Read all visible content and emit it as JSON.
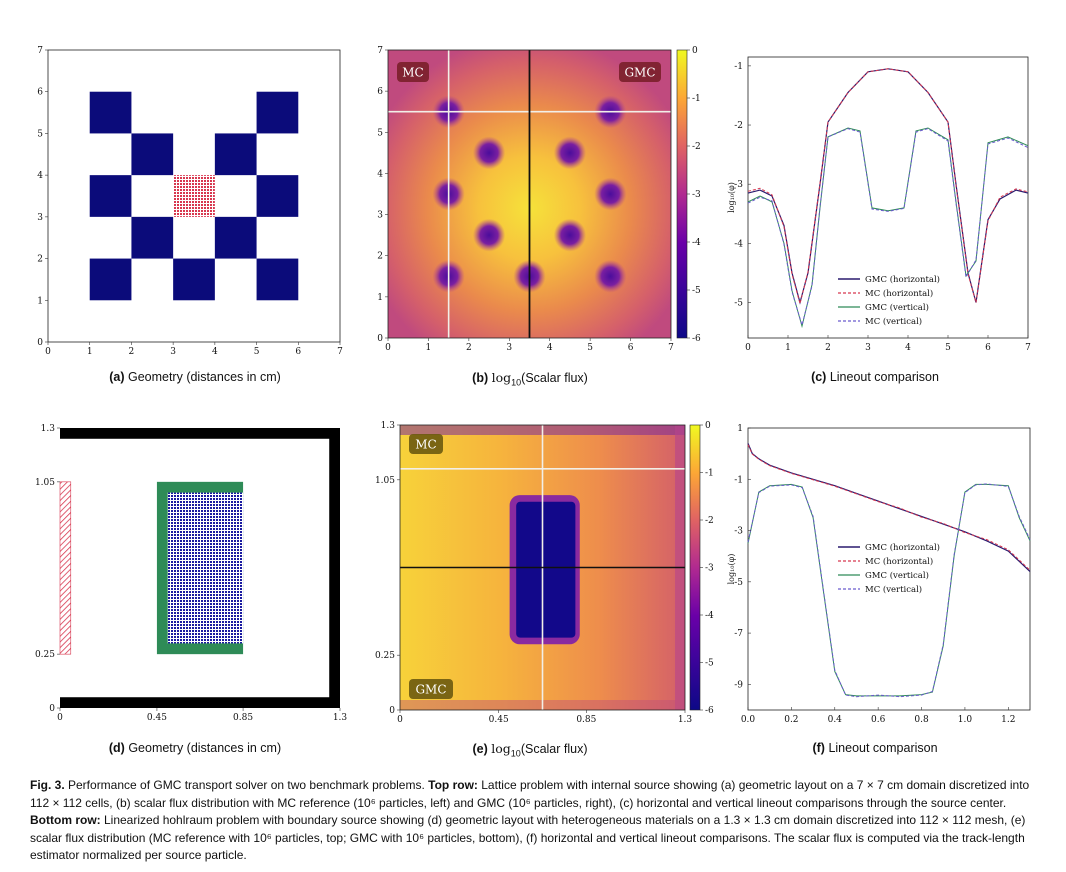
{
  "panels": {
    "a": {
      "label": "(a)",
      "text": "Geometry (distances in cm)"
    },
    "b": {
      "label": "(b)",
      "text_pre": "log",
      "text_sub": "10",
      "text_post": "(Scalar flux)"
    },
    "c": {
      "label": "(c)",
      "text": "Lineout comparison"
    },
    "d": {
      "label": "(d)",
      "text": "Geometry (distances in cm)"
    },
    "e": {
      "label": "(e)",
      "text_pre": "log",
      "text_sub": "10",
      "text_post": "(Scalar flux)"
    },
    "f": {
      "label": "(f)",
      "text": "Lineout comparison"
    }
  },
  "flux_labels": {
    "b_left": "MC",
    "b_right": "GMC",
    "e_top": "MC",
    "e_bottom": "GMC"
  },
  "colors": {
    "absorber": "#0b0b7a",
    "source": "#d8374f",
    "wall": "#000000",
    "box": "#2e8b57",
    "gmc_h": "#2a1a6e",
    "mc_h": "#d8374f",
    "gmc_v": "#2e8b57",
    "mc_v": "#6a5acd"
  },
  "caption": {
    "fig": "Fig. 3.",
    "p1": " Performance of GMC transport solver on two benchmark problems. ",
    "top_label": "Top row:",
    "p2": " Lattice problem with internal source showing (a) geometric layout on a 7 × 7 cm domain discretized into 112 × 112 cells, (b) scalar flux distribution with MC reference (10⁶ particles, left) and GMC (10⁶ particles, right), (c) horizontal and vertical lineout comparisons through the source center. ",
    "bottom_label": "Bottom row:",
    "p3": " Linearized hohlraum problem with boundary source showing (d) geometric layout with heterogeneous materials on a 1.3 × 1.3 cm domain discretized into 112 × 112 mesh, (e) scalar flux distribution (MC reference with 10⁶ particles, top; GMC with 10⁶ particles, bottom), (f) horizontal and vertical lineout comparisons. The scalar flux is computed via the track-length estimator normalized per source particle."
  },
  "chart_data": [
    {
      "id": "a",
      "type": "heatmap",
      "xlim": [
        0,
        7
      ],
      "ylim": [
        0,
        7
      ],
      "xticks": [
        "0",
        "1",
        "2",
        "3",
        "4",
        "5",
        "6",
        "7"
      ],
      "yticks": [
        "0",
        "1",
        "2",
        "3",
        "4",
        "5",
        "6",
        "7"
      ],
      "absorber_squares": [
        [
          1,
          5
        ],
        [
          5,
          5
        ],
        [
          2,
          4
        ],
        [
          4,
          4
        ],
        [
          1,
          3
        ],
        [
          5,
          3
        ],
        [
          2,
          2
        ],
        [
          4,
          2
        ],
        [
          1,
          1
        ],
        [
          3,
          1
        ],
        [
          5,
          1
        ]
      ],
      "source_square": [
        3,
        3
      ]
    },
    {
      "id": "b",
      "type": "heatmap",
      "xlim": [
        0,
        7
      ],
      "ylim": [
        0,
        7
      ],
      "xticks": [
        "0",
        "1",
        "2",
        "3",
        "4",
        "5",
        "6",
        "7"
      ],
      "yticks": [
        "0",
        "1",
        "2",
        "3",
        "4",
        "5",
        "6",
        "7"
      ],
      "colorbar": {
        "range": [
          -6,
          0
        ],
        "ticks": [
          "0",
          "-1",
          "-2",
          "-3",
          "-4",
          "-5",
          "-6"
        ]
      },
      "lineout_vertical_x": 3.5,
      "lineout_horizontal_y": 5.5,
      "lineout_vertical2_x": 1.5
    },
    {
      "id": "c",
      "type": "line",
      "xlim": [
        0,
        7
      ],
      "ylim": [
        -5.6,
        -0.85
      ],
      "xticks": [
        "0",
        "1",
        "2",
        "3",
        "4",
        "5",
        "6",
        "7"
      ],
      "yticks": [
        "-1",
        "-2",
        "-3",
        "-4",
        "-5"
      ],
      "ylabel": "log₁₀(φ)",
      "series": [
        {
          "name": "GMC (horizontal)",
          "x": [
            0,
            0.3,
            0.6,
            0.9,
            1.1,
            1.3,
            1.5,
            1.8,
            2.0,
            2.5,
            3.0,
            3.5,
            4.0,
            4.5,
            5.0,
            5.2,
            5.5,
            5.7,
            6.0,
            6.3,
            6.7,
            7.0
          ],
          "y": [
            -3.15,
            -3.1,
            -3.2,
            -3.7,
            -4.5,
            -5.0,
            -4.5,
            -3.0,
            -1.95,
            -1.45,
            -1.1,
            -1.05,
            -1.1,
            -1.45,
            -1.95,
            -3.0,
            -4.5,
            -5.0,
            -3.6,
            -3.25,
            -3.1,
            -3.15
          ]
        },
        {
          "name": "MC (horizontal)",
          "x": [
            0,
            0.3,
            0.6,
            0.9,
            1.1,
            1.3,
            1.5,
            1.8,
            2.0,
            2.5,
            3.0,
            3.5,
            4.0,
            4.5,
            5.0,
            5.2,
            5.5,
            5.7,
            6.0,
            6.3,
            6.7,
            7.0
          ],
          "y": [
            -3.12,
            -3.07,
            -3.18,
            -3.72,
            -4.52,
            -5.02,
            -4.48,
            -2.98,
            -1.95,
            -1.45,
            -1.1,
            -1.05,
            -1.1,
            -1.45,
            -1.95,
            -3.02,
            -4.52,
            -5.0,
            -3.62,
            -3.22,
            -3.08,
            -3.13
          ]
        },
        {
          "name": "GMC (vertical)",
          "x": [
            0,
            0.3,
            0.6,
            0.9,
            1.1,
            1.35,
            1.6,
            1.8,
            2.0,
            2.5,
            2.8,
            3.1,
            3.5,
            3.9,
            4.2,
            4.5,
            5.0,
            5.2,
            5.45,
            5.7,
            6.0,
            6.5,
            7.0
          ],
          "y": [
            -3.3,
            -3.2,
            -3.3,
            -4.0,
            -4.8,
            -5.4,
            -4.7,
            -3.4,
            -2.2,
            -2.05,
            -2.1,
            -3.4,
            -3.45,
            -3.4,
            -2.1,
            -2.05,
            -2.25,
            -3.3,
            -4.55,
            -4.3,
            -2.3,
            -2.2,
            -2.35
          ]
        },
        {
          "name": "MC (vertical)",
          "x": [
            0,
            0.3,
            0.6,
            0.9,
            1.1,
            1.35,
            1.6,
            1.8,
            2.0,
            2.5,
            2.8,
            3.1,
            3.5,
            3.9,
            4.2,
            4.5,
            5.0,
            5.2,
            5.45,
            5.7,
            6.0,
            6.5,
            7.0
          ],
          "y": [
            -3.32,
            -3.22,
            -3.28,
            -4.02,
            -4.82,
            -5.38,
            -4.72,
            -3.38,
            -2.2,
            -2.06,
            -2.12,
            -3.42,
            -3.46,
            -3.41,
            -2.12,
            -2.06,
            -2.27,
            -3.32,
            -4.57,
            -4.28,
            -2.32,
            -2.22,
            -2.38
          ]
        }
      ],
      "legend": "lower-center"
    },
    {
      "id": "d",
      "type": "heatmap",
      "xlim": [
        0,
        1.3
      ],
      "ylim": [
        0,
        1.3
      ],
      "xticks": [
        "0",
        "0.45",
        "0.85",
        "1.3"
      ],
      "yticks": [
        "0",
        "0.25",
        "1.05",
        "1.3"
      ]
    },
    {
      "id": "e",
      "type": "heatmap",
      "xlim": [
        0,
        1.3
      ],
      "ylim": [
        0,
        1.3
      ],
      "xticks": [
        "0",
        "0.45",
        "0.85",
        "1.3"
      ],
      "yticks": [
        "0",
        "0.25",
        "1.05",
        "1.3"
      ],
      "colorbar": {
        "range": [
          -6,
          0
        ],
        "ticks": [
          "0",
          "-1",
          "-2",
          "-3",
          "-4",
          "-5",
          "-6"
        ]
      },
      "lineout_vertical_x": 0.65,
      "lineout_horizontal_y": 0.65,
      "lineout_horizontal2_y": 1.1
    },
    {
      "id": "f",
      "type": "line",
      "xlim": [
        0,
        1.3
      ],
      "ylim": [
        -10.0,
        1.0
      ],
      "xticks": [
        "0.0",
        "0.2",
        "0.4",
        "0.6",
        "0.8",
        "1.0",
        "1.2"
      ],
      "yticks": [
        "1",
        "-1",
        "-3",
        "-5",
        "-7",
        "-9"
      ],
      "ylabel": "log₁₀(φ)",
      "series": [
        {
          "name": "GMC (horizontal)",
          "x": [
            0,
            0.02,
            0.05,
            0.1,
            0.2,
            0.3,
            0.4,
            0.5,
            0.6,
            0.7,
            0.8,
            0.9,
            1.0,
            1.1,
            1.2,
            1.25,
            1.3
          ],
          "y": [
            0.4,
            0.0,
            -0.2,
            -0.45,
            -0.75,
            -1.0,
            -1.25,
            -1.55,
            -1.85,
            -2.15,
            -2.45,
            -2.75,
            -3.05,
            -3.4,
            -3.8,
            -4.2,
            -4.6
          ]
        },
        {
          "name": "MC (horizontal)",
          "x": [
            0,
            0.02,
            0.05,
            0.1,
            0.2,
            0.3,
            0.4,
            0.5,
            0.6,
            0.7,
            0.8,
            0.9,
            1.0,
            1.1,
            1.2,
            1.25,
            1.3
          ],
          "y": [
            0.35,
            -0.02,
            -0.22,
            -0.47,
            -0.77,
            -1.02,
            -1.27,
            -1.57,
            -1.87,
            -2.12,
            -2.48,
            -2.72,
            -3.08,
            -3.35,
            -3.75,
            -4.15,
            -4.55
          ]
        },
        {
          "name": "GMC (vertical)",
          "x": [
            0,
            0.05,
            0.1,
            0.2,
            0.25,
            0.3,
            0.35,
            0.4,
            0.45,
            0.5,
            0.6,
            0.7,
            0.8,
            0.85,
            0.9,
            0.95,
            1.0,
            1.05,
            1.1,
            1.2,
            1.25,
            1.3
          ],
          "y": [
            -3.5,
            -1.5,
            -1.25,
            -1.2,
            -1.3,
            -2.5,
            -5.5,
            -8.5,
            -9.4,
            -9.45,
            -9.45,
            -9.45,
            -9.4,
            -9.3,
            -7.5,
            -4.0,
            -1.5,
            -1.2,
            -1.2,
            -1.25,
            -2.5,
            -3.4
          ]
        },
        {
          "name": "MC (vertical)",
          "x": [
            0,
            0.05,
            0.1,
            0.2,
            0.25,
            0.3,
            0.35,
            0.4,
            0.45,
            0.5,
            0.6,
            0.7,
            0.8,
            0.85,
            0.9,
            0.95,
            1.0,
            1.05,
            1.1,
            1.2,
            1.25,
            1.3
          ],
          "y": [
            -3.45,
            -1.52,
            -1.27,
            -1.22,
            -1.33,
            -2.45,
            -5.45,
            -8.45,
            -9.42,
            -9.48,
            -9.42,
            -9.48,
            -9.42,
            -9.28,
            -7.45,
            -3.95,
            -1.52,
            -1.22,
            -1.18,
            -1.28,
            -2.45,
            -3.35
          ]
        }
      ],
      "legend": "center"
    }
  ]
}
